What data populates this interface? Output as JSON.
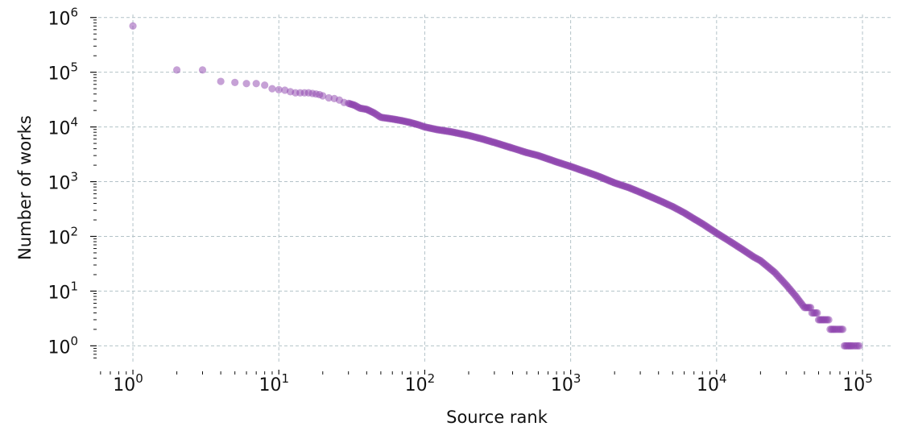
{
  "chart_data": {
    "type": "scatter",
    "xlabel": "Source rank",
    "ylabel": "Number of works",
    "xscale": "log",
    "yscale": "log",
    "xlim": [
      0.55,
      160000
    ],
    "ylim": [
      0.55,
      1300000
    ],
    "grid": true,
    "marker_color": "#8e44ad",
    "x_ticks": [
      {
        "base": "10",
        "exp": "0"
      },
      {
        "base": "10",
        "exp": "1"
      },
      {
        "base": "10",
        "exp": "2"
      },
      {
        "base": "10",
        "exp": "3"
      },
      {
        "base": "10",
        "exp": "4"
      },
      {
        "base": "10",
        "exp": "5"
      }
    ],
    "y_ticks": [
      {
        "base": "10",
        "exp": "0"
      },
      {
        "base": "10",
        "exp": "1"
      },
      {
        "base": "10",
        "exp": "2"
      },
      {
        "base": "10",
        "exp": "3"
      },
      {
        "base": "10",
        "exp": "4"
      },
      {
        "base": "10",
        "exp": "5"
      },
      {
        "base": "10",
        "exp": "6"
      }
    ],
    "series": [
      {
        "points": [
          [
            1,
            700000
          ],
          [
            2,
            110000
          ],
          [
            3,
            110000
          ],
          [
            4,
            68000
          ],
          [
            5,
            65000
          ],
          [
            6,
            62000
          ],
          [
            7,
            62000
          ],
          [
            8,
            58000
          ],
          [
            9,
            50000
          ],
          [
            10,
            48000
          ],
          [
            11,
            47000
          ],
          [
            12,
            44000
          ],
          [
            13,
            42000
          ],
          [
            14,
            42000
          ],
          [
            15,
            42000
          ],
          [
            16,
            42000
          ],
          [
            17,
            41000
          ],
          [
            18,
            40000
          ],
          [
            19,
            39000
          ],
          [
            20,
            37000
          ],
          [
            22,
            34000
          ],
          [
            24,
            33000
          ],
          [
            26,
            31000
          ],
          [
            28,
            28000
          ],
          [
            30,
            27000
          ],
          [
            33,
            25000
          ],
          [
            36,
            22000
          ],
          [
            40,
            21000
          ],
          [
            45,
            18000
          ],
          [
            50,
            15000
          ],
          [
            60,
            14000
          ],
          [
            70,
            13000
          ],
          [
            80,
            12000
          ],
          [
            90,
            11000
          ],
          [
            100,
            10000
          ],
          [
            120,
            9000
          ],
          [
            150,
            8200
          ],
          [
            200,
            7000
          ],
          [
            250,
            6000
          ],
          [
            300,
            5200
          ],
          [
            400,
            4100
          ],
          [
            500,
            3400
          ],
          [
            600,
            3000
          ],
          [
            700,
            2600
          ],
          [
            800,
            2300
          ],
          [
            1000,
            1900
          ],
          [
            1200,
            1600
          ],
          [
            1500,
            1300
          ],
          [
            2000,
            950
          ],
          [
            2500,
            780
          ],
          [
            3000,
            640
          ],
          [
            4000,
            460
          ],
          [
            5000,
            350
          ],
          [
            6000,
            270
          ],
          [
            7000,
            210
          ],
          [
            8000,
            170
          ],
          [
            10000,
            115
          ],
          [
            12000,
            85
          ],
          [
            15000,
            58
          ],
          [
            18000,
            42
          ],
          [
            20000,
            36
          ],
          [
            25000,
            22
          ],
          [
            30000,
            13
          ],
          [
            35000,
            8
          ],
          [
            40000,
            5
          ],
          [
            45000,
            4
          ],
          [
            50000,
            3
          ],
          [
            55000,
            3
          ],
          [
            60000,
            2
          ],
          [
            65000,
            2
          ],
          [
            70000,
            2
          ],
          [
            75000,
            1
          ],
          [
            80000,
            1
          ],
          [
            85000,
            1
          ],
          [
            90000,
            1
          ],
          [
            95000,
            1
          ]
        ]
      }
    ]
  }
}
